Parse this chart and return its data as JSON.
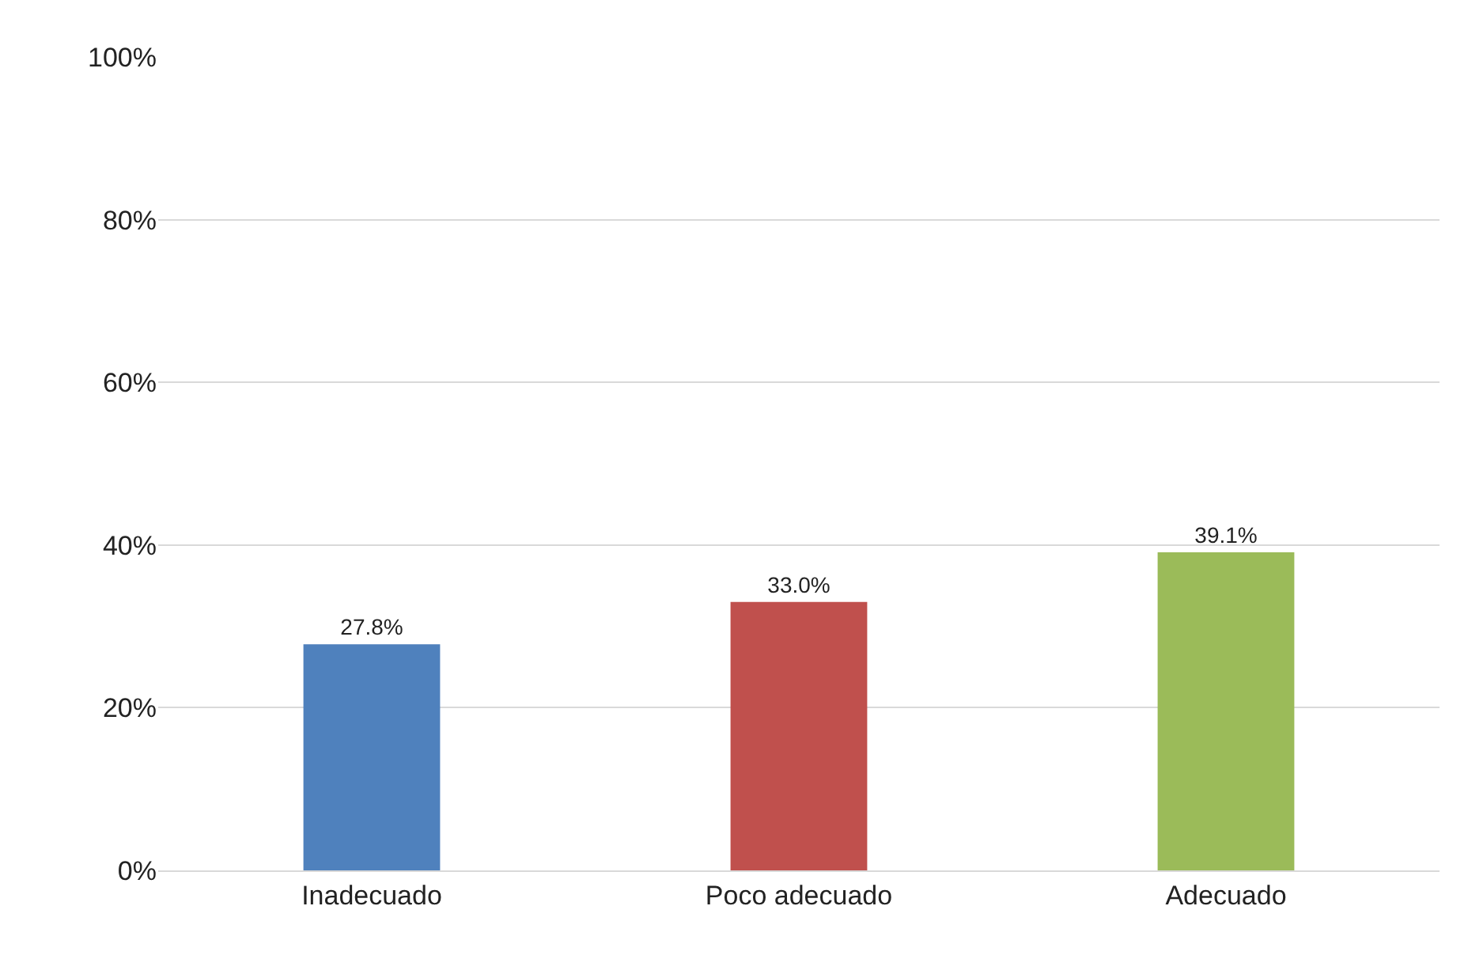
{
  "chart_data": {
    "type": "bar",
    "categories": [
      "Inadecuado",
      "Poco adecuado",
      "Adecuado"
    ],
    "values": [
      27.8,
      33.0,
      39.1
    ],
    "colors": [
      "#4f81bd",
      "#c0504d",
      "#9bbb59"
    ],
    "value_labels": [
      "27.8%",
      "33.0%",
      "39.1%"
    ],
    "ylim": [
      0,
      100
    ],
    "yticks": [
      {
        "value": 0,
        "label": "0%"
      },
      {
        "value": 20,
        "label": "20%"
      },
      {
        "value": 40,
        "label": "40%"
      },
      {
        "value": 60,
        "label": "60%"
      },
      {
        "value": 80,
        "label": "80%"
      },
      {
        "value": 100,
        "label": "100%"
      }
    ],
    "grid": "y"
  }
}
